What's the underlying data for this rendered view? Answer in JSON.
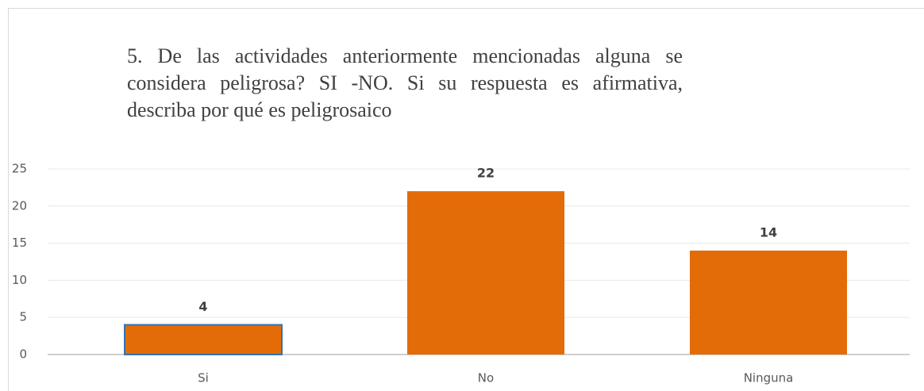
{
  "chart_data": {
    "type": "bar",
    "title": "5. De las actividades anteriormente mencionadas alguna se considera peligrosa? SI -NO. Si su respuesta es afirmativa, describa por qué es peligrosaico",
    "categories": [
      "Si",
      "No",
      "Ninguna"
    ],
    "values": [
      4,
      22,
      14
    ],
    "color": "#e36c09",
    "ylim": [
      0,
      25
    ],
    "yticks": [
      0,
      5,
      10,
      15,
      20,
      25
    ],
    "grid": true
  }
}
